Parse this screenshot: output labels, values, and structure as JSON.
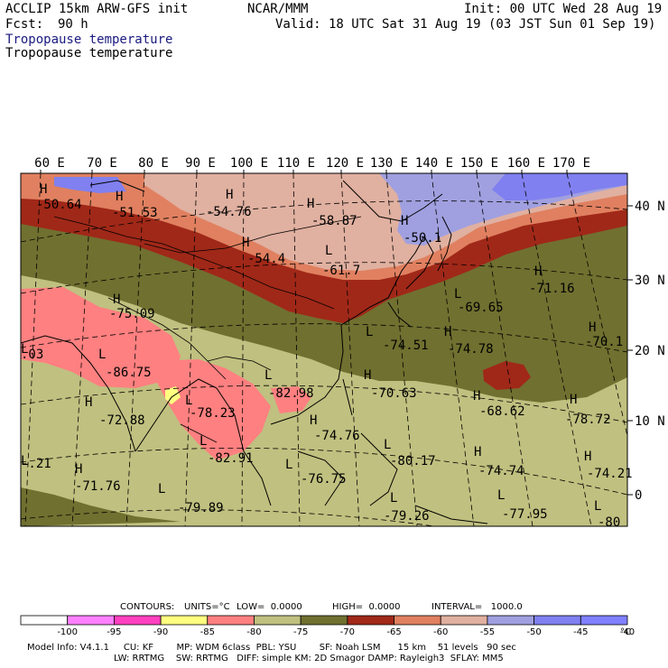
{
  "header": {
    "model": "ACCLIP 15km ARW-GFS init",
    "org": "NCAR/MMM",
    "init": "Init: 00 UTC Wed 28 Aug 19",
    "fcst_label": "Fcst:",
    "fcst_value": "90 h",
    "valid": "Valid: 18 UTC Sat 31 Aug 19 (03 JST Sun 01 Sep 19)",
    "field_title_1": "Tropopause temperature",
    "field_title_2": "Tropopause temperature"
  },
  "map": {
    "lon_labels": [
      "60 E",
      "70 E",
      "80 E",
      "90 E",
      "100 E",
      "110 E",
      "120 E",
      "130 E",
      "140 E",
      "150 E",
      "160 E",
      "170 E"
    ],
    "lat_labels": [
      "40 N",
      "30 N",
      "20 N",
      "10 N",
      "0"
    ],
    "extrema": [
      {
        "type": "H",
        "value": "-50.64"
      },
      {
        "type": "H",
        "value": "-51.53"
      },
      {
        "type": "H",
        "value": "-54.76"
      },
      {
        "type": "H",
        "value": "-58.87"
      },
      {
        "type": "H",
        "value": "-54.4"
      },
      {
        "type": "H",
        "value": "-50.1"
      },
      {
        "type": "L",
        "value": "-61.7"
      },
      {
        "type": "H",
        "value": "-71.16"
      },
      {
        "type": "L",
        "value": "-69.65"
      },
      {
        "type": "H",
        "value": "-70.1"
      },
      {
        "type": "H",
        "value": "-75.09"
      },
      {
        "type": "L",
        "value": "-74.51"
      },
      {
        "type": "H",
        "value": "-74.78"
      },
      {
        "type": "L",
        "value": "-86.75"
      },
      {
        "type": "L",
        "value": "-82.98"
      },
      {
        "type": "H",
        "value": "-70.63"
      },
      {
        "type": "H",
        "value": "-68.62"
      },
      {
        "type": "H",
        "value": "-78.72"
      },
      {
        "type": "H",
        "value": "-72.88"
      },
      {
        "type": "L",
        "value": "-78.23"
      },
      {
        "type": "H",
        "value": "-74.76"
      },
      {
        "type": "L",
        "value": "-82.91"
      },
      {
        "type": "L",
        "value": "-80.17"
      },
      {
        "type": "H",
        "value": "-74.74"
      },
      {
        "type": "H",
        "value": "-74.21"
      },
      {
        "type": "H",
        "value": "-71.76"
      },
      {
        "type": "L",
        "value": "-76.75"
      },
      {
        "type": "L",
        "value": "-79.89"
      },
      {
        "type": "L",
        "value": "-79.26"
      },
      {
        "type": "L",
        "value": "-77.95"
      },
      {
        "type": "L",
        "value": "-80"
      },
      {
        "type": "L",
        "value": "-.21"
      },
      {
        "type": "L",
        "value": ".03"
      }
    ]
  },
  "contours": {
    "label": "CONTOURS:",
    "units": "UNITS=°C",
    "low": "LOW=  0.0000",
    "high": "HIGH=  0.0000",
    "interval": "INTERVAL=   1000.0"
  },
  "colorbar": {
    "ticks": [
      "-100",
      "-95",
      "-90",
      "-85",
      "-80",
      "-75",
      "-70",
      "-65",
      "-60",
      "-55",
      "-50",
      "-45",
      "-40"
    ],
    "unit": "°C",
    "colors": [
      "#ffffff",
      "#ff80ff",
      "#ff40c0",
      "#ffff80",
      "#ff8080",
      "#c0c080",
      "#707030",
      "#a02818",
      "#e08060",
      "#e0b0a0",
      "#a0a0e0",
      "#8080f0",
      "#8080ff"
    ]
  },
  "footer": {
    "line1": "Model Info: V4.1.1     CU: KF        MP: WDM 6class  PBL: YSU        SF: Noah LSM      15 km    51 levels   90 sec",
    "line2": "LW: RRTMG    SW: RRTMG   DIFF: simple KM: 2D Smagor DAMP: Rayleigh3  SFLAY: MM5"
  }
}
